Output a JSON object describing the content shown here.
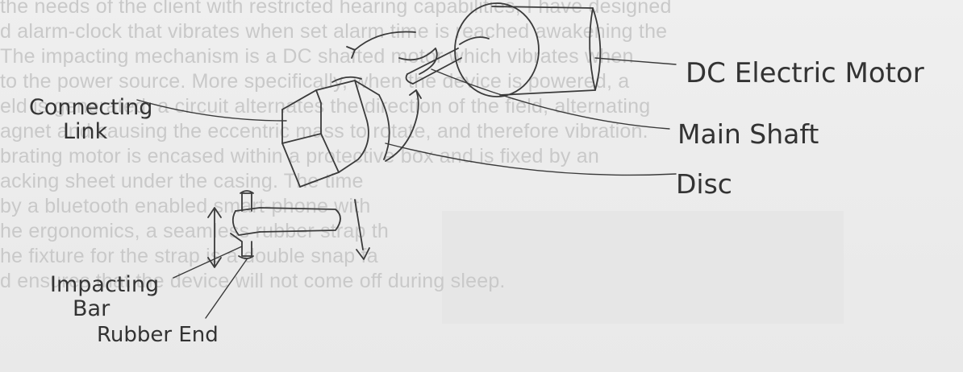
{
  "background_text": [
    "the needs of the client with restricted hearing capabilities, I have designed",
    "d alarm-clock that vibrates when set alarm time is reached awakening the",
    "The impacting mechanism is a DC shafted motor which vibrates when",
    "to the power source. More specifically, when the device is powered, a",
    "eld is generated, a circuit alternates the direction of the field, alternating",
    "agnet and causing the eccentric mass to rotate, and therefore vibration.",
    "brating motor is encased within a protective box and is fixed by an",
    "acking sheet under the casing. The time",
    "by a bluetooth enabled smart-phone with",
    "he ergonomics, a seamless rubber strap th",
    "he fixture for the strap is a double snap fa",
    "d ensures that the device will not come off during sleep."
  ],
  "labels": {
    "motor": "DC Electric Motor",
    "shaft": "Main Shaft",
    "disc": "Disc",
    "link_line1": "Connecting",
    "link_line2": "Link",
    "bar_line1": "Impacting",
    "bar_line2": "Bar",
    "rubber": "Rubber End"
  },
  "colors": {
    "pencil": "#3a3a3a",
    "faint_text": "#c9c9c9",
    "paper": "#ececec"
  }
}
